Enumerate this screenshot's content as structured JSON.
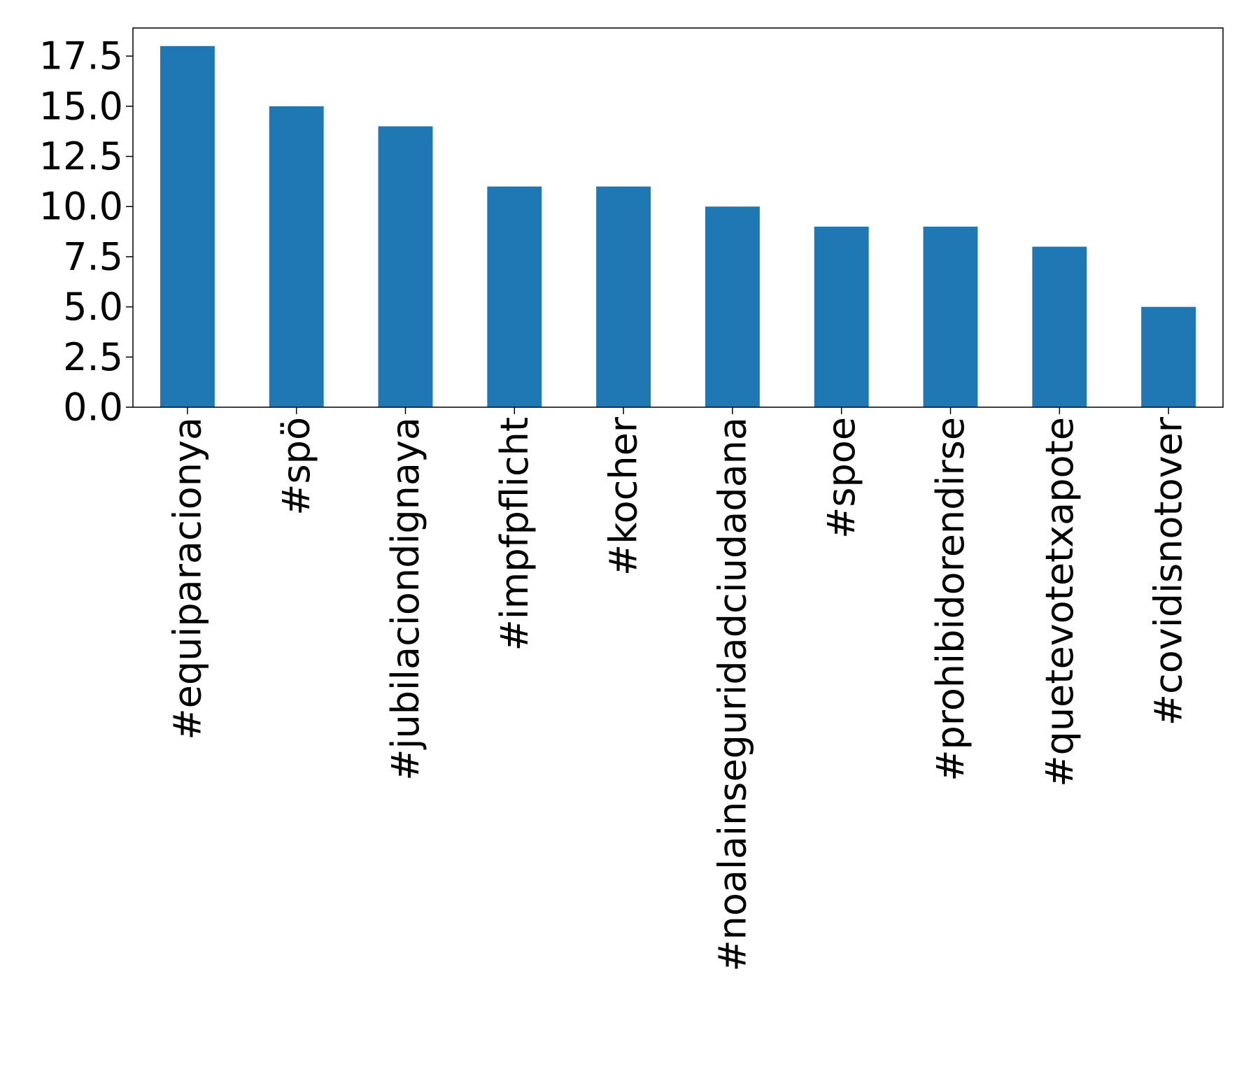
{
  "chart_data": {
    "type": "bar",
    "title": "",
    "xlabel": "",
    "ylabel": "",
    "categories": [
      "#equiparacionya",
      "#spö",
      "#jubilaciondignaya",
      "#impfpflicht",
      "#kocher",
      "#noalainseguridadciudadana",
      "#spoe",
      "#prohibidorendirse",
      "#quetevotetxapote",
      "#covidisnotover"
    ],
    "values": [
      18,
      15,
      14,
      11,
      11,
      10,
      9,
      9,
      8,
      5
    ],
    "ylim": [
      0,
      18.9
    ],
    "yticks": [
      0.0,
      2.5,
      5.0,
      7.5,
      10.0,
      12.5,
      15.0,
      17.5
    ],
    "ytick_labels": [
      "0.0",
      "2.5",
      "5.0",
      "7.5",
      "10.0",
      "12.5",
      "15.0",
      "17.5"
    ],
    "grid": false,
    "legend": "none",
    "bar_color": "#1f77b4"
  }
}
